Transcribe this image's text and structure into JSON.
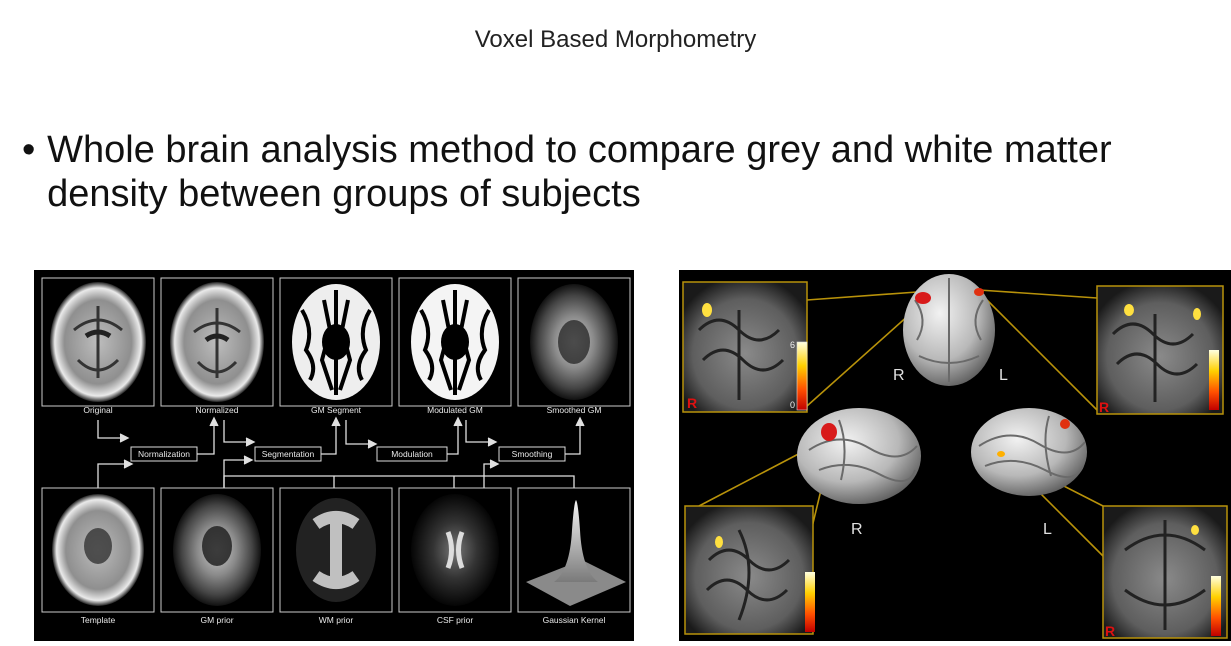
{
  "slide": {
    "title": "Voxel Based Morphometry",
    "bullet": "Whole brain analysis method to compare grey and white matter density between groups of subjects"
  },
  "pipeline_figure": {
    "top_captions": [
      "Original",
      "Normalized",
      "GM Segment",
      "Modulated GM",
      "Smoothed GM"
    ],
    "bottom_captions": [
      "Template",
      "GM prior",
      "WM prior",
      "CSF prior",
      "Gaussian Kernel"
    ],
    "steps": [
      "Normalization",
      "Segmentation",
      "Modulation",
      "Smoothing"
    ]
  },
  "results_figure": {
    "hemisphere_labels": [
      "R",
      "L",
      "R",
      "L"
    ],
    "slice_orientation_marks": [
      "R",
      "R",
      "R"
    ],
    "color_scale": {
      "max": "6",
      "min": "0"
    }
  }
}
